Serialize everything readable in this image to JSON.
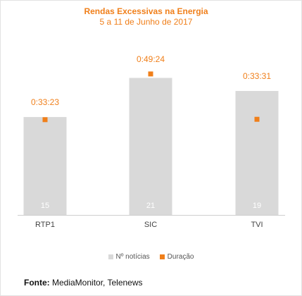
{
  "chart_data": {
    "type": "bar",
    "title": "Rendas Excessivas na Energia",
    "subtitle": "5 a 11 de Junho de 2017",
    "categories": [
      "RTP1",
      "SIC",
      "TVI"
    ],
    "series": [
      {
        "name": "Nº notícias",
        "values": [
          15,
          21,
          19
        ],
        "color": "#d9d9d9"
      },
      {
        "name": "Duração",
        "values": [
          "0:33:23",
          "0:49:24",
          "0:33:31"
        ],
        "seconds": [
          2003,
          2964,
          2011
        ],
        "color": "#f07f1a"
      }
    ],
    "legend_position": "bottom",
    "grid": false
  },
  "source": {
    "label": "Fonte:",
    "text": "MediaMonitor, Telenews"
  }
}
